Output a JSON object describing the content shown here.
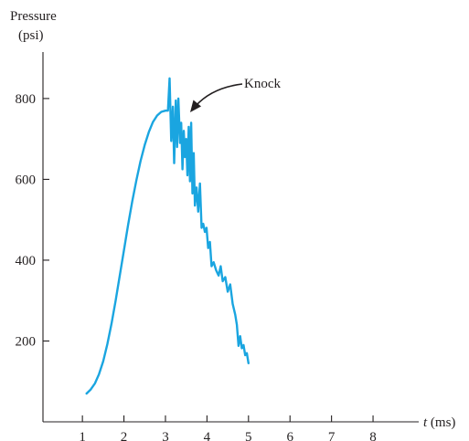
{
  "chart_data": {
    "type": "line",
    "ylabel": "Pressure",
    "ylabel_unit": "(psi)",
    "xlabel_var": "t",
    "xlabel_unit": " (ms)",
    "xlim": [
      0.05,
      9.1
    ],
    "ylim": [
      0,
      915
    ],
    "xticks": [
      1,
      2,
      3,
      4,
      5,
      6,
      7,
      8
    ],
    "yticks": [
      200,
      400,
      600,
      800
    ],
    "grid": false,
    "annotation": {
      "text": "Knock",
      "x": 3.55,
      "y": 745
    },
    "series": [
      {
        "color": "#1aa5e0",
        "points": [
          [
            1.1,
            70
          ],
          [
            1.2,
            80
          ],
          [
            1.3,
            95
          ],
          [
            1.4,
            118
          ],
          [
            1.5,
            150
          ],
          [
            1.6,
            192
          ],
          [
            1.7,
            242
          ],
          [
            1.8,
            300
          ],
          [
            1.9,
            362
          ],
          [
            2.0,
            425
          ],
          [
            2.1,
            487
          ],
          [
            2.2,
            545
          ],
          [
            2.3,
            598
          ],
          [
            2.4,
            645
          ],
          [
            2.5,
            685
          ],
          [
            2.6,
            717
          ],
          [
            2.7,
            742
          ],
          [
            2.8,
            758
          ],
          [
            2.9,
            767
          ],
          [
            3.0,
            770
          ],
          [
            3.06,
            770
          ],
          [
            3.1,
            850
          ],
          [
            3.14,
            695
          ],
          [
            3.18,
            780
          ],
          [
            3.21,
            640
          ],
          [
            3.25,
            795
          ],
          [
            3.28,
            680
          ],
          [
            3.31,
            800
          ],
          [
            3.35,
            690
          ],
          [
            3.38,
            740
          ],
          [
            3.41,
            625
          ],
          [
            3.44,
            720
          ],
          [
            3.47,
            655
          ],
          [
            3.5,
            700
          ],
          [
            3.53,
            610
          ],
          [
            3.56,
            730
          ],
          [
            3.59,
            595
          ],
          [
            3.62,
            740
          ],
          [
            3.65,
            565
          ],
          [
            3.68,
            665
          ],
          [
            3.71,
            535
          ],
          [
            3.75,
            580
          ],
          [
            3.79,
            520
          ],
          [
            3.83,
            590
          ],
          [
            3.87,
            480
          ],
          [
            3.91,
            490
          ],
          [
            3.95,
            470
          ],
          [
            3.99,
            480
          ],
          [
            4.03,
            430
          ],
          [
            4.07,
            445
          ],
          [
            4.11,
            385
          ],
          [
            4.16,
            395
          ],
          [
            4.22,
            375
          ],
          [
            4.28,
            362
          ],
          [
            4.33,
            385
          ],
          [
            4.38,
            348
          ],
          [
            4.44,
            358
          ],
          [
            4.5,
            322
          ],
          [
            4.56,
            340
          ],
          [
            4.62,
            292
          ],
          [
            4.68,
            265
          ],
          [
            4.72,
            240
          ],
          [
            4.76,
            188
          ],
          [
            4.8,
            212
          ],
          [
            4.84,
            182
          ],
          [
            4.88,
            190
          ],
          [
            4.92,
            165
          ],
          [
            4.96,
            170
          ],
          [
            5.0,
            145
          ]
        ]
      }
    ]
  }
}
